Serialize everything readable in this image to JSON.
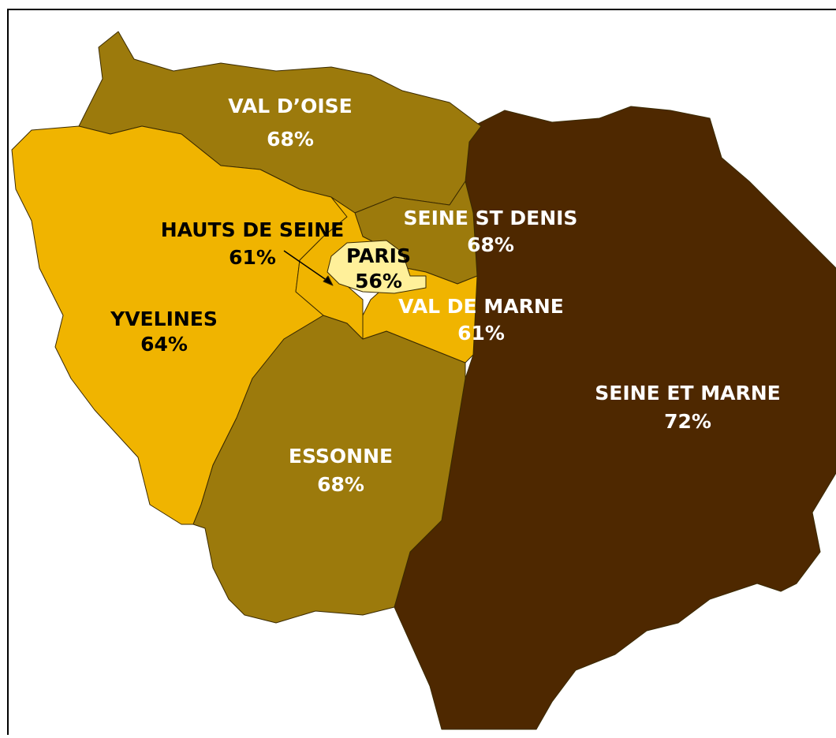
{
  "regions": [
    {
      "name": "SEINE ET MARNE",
      "value": "72%",
      "color": "#4e2800",
      "text_color": "#ffffff"
    },
    {
      "name": "VAL D’OISE",
      "value": "68%",
      "color": "#9c7a0c",
      "text_color": "#ffffff"
    },
    {
      "name": "YVELINES",
      "value": "64%",
      "color": "#f0b400",
      "text_color": "#000000"
    },
    {
      "name": "ESSONNE",
      "value": "68%",
      "color": "#9c7a0c",
      "text_color": "#ffffff"
    },
    {
      "name": "SEINE ST DENIS",
      "value": "68%",
      "color": "#9c7a0c",
      "text_color": "#ffffff"
    },
    {
      "name": "VAL DE MARNE",
      "value": "61%",
      "color": "#f0b400",
      "text_color": "#ffffff"
    },
    {
      "name": "HAUTS DE SEINE",
      "value": "61%",
      "color": "#f0b400",
      "text_color": "#000000"
    },
    {
      "name": "PARIS",
      "value": "56%",
      "color": "#fff09a",
      "text_color": "#000000"
    }
  ]
}
